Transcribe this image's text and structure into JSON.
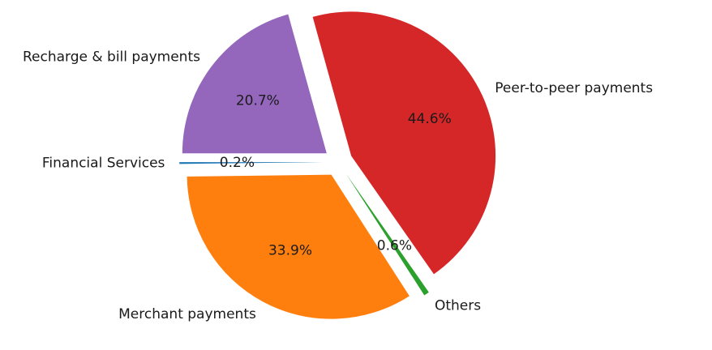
{
  "chart_data": {
    "type": "pie",
    "title": "",
    "slices": [
      {
        "label": "Financial Services",
        "value": 0.2,
        "pct_label": "0.2%",
        "color": "#1f77b4",
        "exploded": true
      },
      {
        "label": "Merchant payments",
        "value": 33.9,
        "pct_label": "33.9%",
        "color": "#ff7f0e",
        "exploded": true
      },
      {
        "label": "Others",
        "value": 0.6,
        "pct_label": "0.6%",
        "color": "#2ca02c",
        "exploded": true
      },
      {
        "label": "Peer-to-peer payments",
        "value": 44.6,
        "pct_label": "44.6%",
        "color": "#d62728",
        "exploded": true
      },
      {
        "label": "Recharge & bill payments",
        "value": 20.7,
        "pct_label": "20.7%",
        "color": "#9467bd",
        "exploded": true
      }
    ],
    "start_angle_deg": 180,
    "direction": "counterclockwise",
    "legend": "none"
  }
}
